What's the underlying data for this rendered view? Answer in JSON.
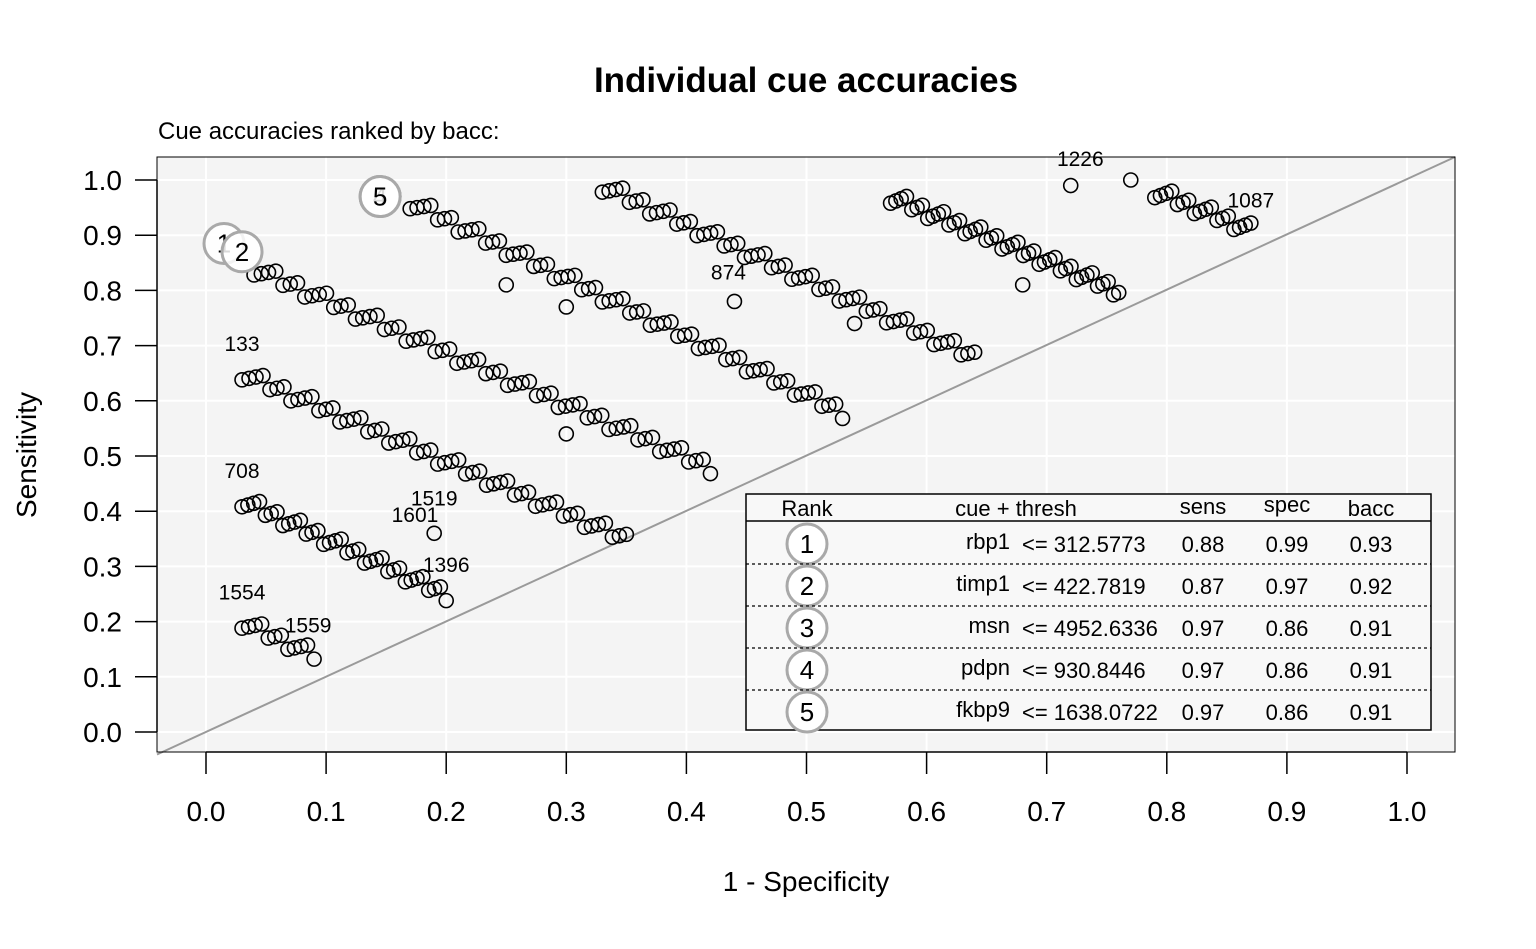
{
  "chart_data": {
    "type": "scatter",
    "title": "Individual cue accuracies",
    "subtitle": "Cue accuracies ranked by bacc:",
    "xlabel": "1 - Specificity",
    "ylabel": "Sensitivity",
    "xlim": [
      0,
      1
    ],
    "ylim": [
      0,
      1
    ],
    "x_ticks": [
      "0.0",
      "0.1",
      "0.2",
      "0.3",
      "0.4",
      "0.5",
      "0.6",
      "0.7",
      "0.8",
      "0.9",
      "1.0"
    ],
    "y_ticks": [
      "0.0",
      "0.1",
      "0.2",
      "0.3",
      "0.4",
      "0.5",
      "0.6",
      "0.7",
      "0.8",
      "0.9",
      "1.0"
    ],
    "grid": true,
    "diagonal": true,
    "point_bands": [
      {
        "x0": 0.04,
        "y0": 0.84,
        "x1": 0.42,
        "y1": 0.48,
        "n": 64
      },
      {
        "x0": 0.17,
        "y0": 0.96,
        "x1": 0.53,
        "y1": 0.58,
        "n": 64
      },
      {
        "x0": 0.33,
        "y0": 0.99,
        "x1": 0.64,
        "y1": 0.68,
        "n": 56
      },
      {
        "x0": 0.57,
        "y0": 0.97,
        "x1": 0.76,
        "y1": 0.8,
        "n": 44
      },
      {
        "x0": 0.79,
        "y0": 0.98,
        "x1": 0.87,
        "y1": 0.91,
        "n": 18
      },
      {
        "x0": 0.03,
        "y0": 0.65,
        "x1": 0.35,
        "y1": 0.35,
        "n": 56
      },
      {
        "x0": 0.03,
        "y0": 0.42,
        "x1": 0.2,
        "y1": 0.25,
        "n": 36
      },
      {
        "x0": 0.03,
        "y0": 0.2,
        "x1": 0.09,
        "y1": 0.14,
        "n": 12
      }
    ],
    "extra_points": [
      {
        "x": 0.25,
        "y": 0.81
      },
      {
        "x": 0.3,
        "y": 0.77
      },
      {
        "x": 0.3,
        "y": 0.54
      },
      {
        "x": 0.44,
        "y": 0.78
      },
      {
        "x": 0.54,
        "y": 0.74
      },
      {
        "x": 0.68,
        "y": 0.81
      },
      {
        "x": 0.72,
        "y": 0.99
      },
      {
        "x": 0.77,
        "y": 1.0
      },
      {
        "x": 0.19,
        "y": 0.36
      }
    ],
    "point_labels": [
      {
        "text": "874",
        "x": 0.435,
        "y": 0.82
      },
      {
        "text": "1519",
        "x": 0.19,
        "y": 0.41
      },
      {
        "text": "1601",
        "x": 0.174,
        "y": 0.38
      },
      {
        "text": "133",
        "x": 0.03,
        "y": 0.69
      },
      {
        "text": "708",
        "x": 0.03,
        "y": 0.46
      },
      {
        "text": "1554",
        "x": 0.03,
        "y": 0.24
      },
      {
        "text": "1226",
        "x": 0.728,
        "y": 1.025
      },
      {
        "text": "1396",
        "x": 0.2,
        "y": 0.29
      },
      {
        "text": "1559",
        "x": 0.085,
        "y": 0.18
      },
      {
        "text": "1087",
        "x": 0.87,
        "y": 0.95
      }
    ],
    "top_cues": [
      {
        "rank": "1",
        "cue": "rbp1",
        "thresh": "<= 312.5773",
        "sens": "0.88",
        "spec": "0.99",
        "bacc": "0.93",
        "x": 0.015,
        "y": 0.885
      },
      {
        "rank": "2",
        "cue": "timp1",
        "thresh": "<= 422.7819",
        "sens": "0.87",
        "spec": "0.97",
        "bacc": "0.92",
        "x": 0.03,
        "y": 0.87
      },
      {
        "rank": "3",
        "cue": "msn",
        "thresh": "<= 4952.6336",
        "sens": "0.97",
        "spec": "0.86",
        "bacc": "0.91",
        "x": 0.145,
        "y": 0.97
      },
      {
        "rank": "4",
        "cue": "pdpn",
        "thresh": "<= 930.8446",
        "sens": "0.97",
        "spec": "0.86",
        "bacc": "0.91",
        "x": 0.145,
        "y": 0.97
      },
      {
        "rank": "5",
        "cue": "fkbp9",
        "thresh": "<= 1638.0722",
        "sens": "0.97",
        "spec": "0.86",
        "bacc": "0.91",
        "x": 0.145,
        "y": 0.97
      }
    ],
    "legend": {
      "headers": {
        "rank": "Rank",
        "cue": "cue + thresh",
        "sens": "sens",
        "spec": "spec",
        "bacc": "bacc"
      },
      "placement": "bottom-right"
    }
  }
}
